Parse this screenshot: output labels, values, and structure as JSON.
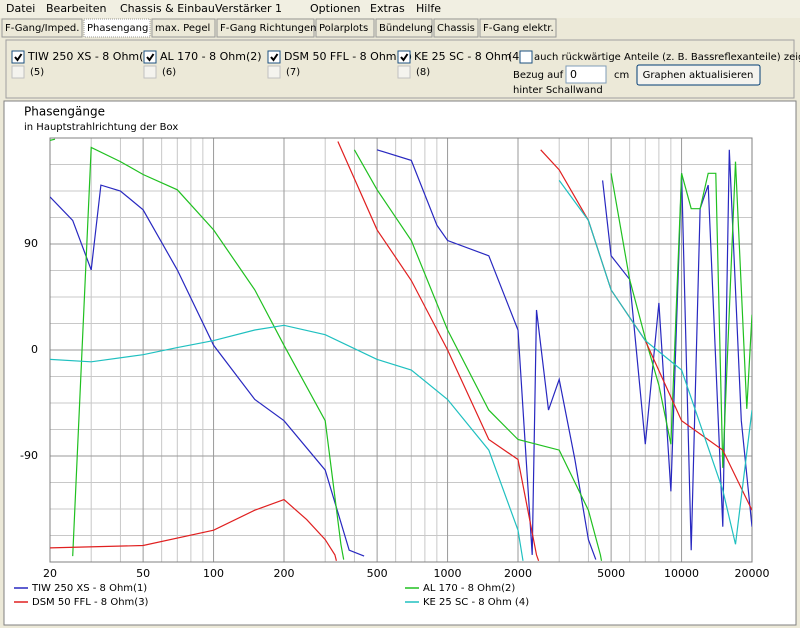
{
  "menu": [
    "Datei",
    "Bearbeiten",
    "Chassis & Einbau",
    "Verstärker 1",
    "Optionen",
    "Extras",
    "Hilfe"
  ],
  "tabs": [
    "F-Gang/Imped.",
    "Phasengang",
    "max. Pegel",
    "F-Gang Richtungen",
    "Polarplots",
    "Bündelung",
    "Chassis",
    "F-Gang elektr."
  ],
  "active_tab": 1,
  "panel": {
    "drivers": [
      {
        "label": "TIW 250 XS - 8 Ohm(1)",
        "checked": true
      },
      {
        "label": "AL 170 - 8 Ohm(2)",
        "checked": true
      },
      {
        "label": "DSM 50 FFL - 8 Ohm(3)",
        "checked": true
      },
      {
        "label": "KE 25 SC - 8 Ohm",
        "checked": true
      }
    ],
    "slot4": "(4",
    "slots": [
      "(5)",
      "(6)",
      "(7)",
      "(8)"
    ],
    "rear_option": "auch rückwärtige Anteile (z. B. Bassreflexanteile) zeigen",
    "reference_label": "Bezug auf",
    "reference_value": "0",
    "reference_unit": "cm",
    "reference_note": "hinter Schallwand",
    "button": "Graphen aktualisieren"
  },
  "chart_data": {
    "type": "line",
    "title": "Phasengänge",
    "subtitle": "in Hauptstrahlrichtung der Box",
    "xscale": "log",
    "xlim": [
      20,
      20000
    ],
    "xticks": [
      20,
      50,
      100,
      200,
      500,
      1000,
      2000,
      5000,
      10000,
      20000
    ],
    "xminor": [
      30,
      40,
      60,
      70,
      80,
      90,
      300,
      400,
      600,
      700,
      800,
      900,
      3000,
      4000,
      6000,
      7000,
      8000,
      9000
    ],
    "ylim": [
      -180,
      180
    ],
    "yticks": [
      -90,
      0,
      90
    ],
    "yminor": [
      -157.5,
      -135,
      -112.5,
      -67.5,
      -45,
      -22.5,
      22.5,
      45,
      67.5,
      112.5,
      135,
      157.5
    ],
    "grid": true,
    "series": [
      {
        "name": "TIW 250 XS - 8 Ohm(1)",
        "color": "#2828c0",
        "x": [
          20,
          25,
          30,
          33,
          40,
          50,
          70,
          100,
          150,
          200,
          300,
          380,
          440,
          440,
          500,
          700,
          900,
          1000,
          1500,
          2000,
          2300,
          2400,
          2700,
          3000,
          3500,
          4000,
          4300,
          4300,
          4600,
          5000,
          6000,
          7000,
          8000,
          9000,
          10000,
          11000,
          12000,
          13000,
          15000,
          16000,
          18000,
          20000
        ],
        "values": [
          130,
          110,
          68,
          140,
          135,
          119,
          68,
          4,
          -42,
          -60,
          -102,
          -170,
          -175,
          null,
          170,
          161,
          106,
          93,
          80,
          17,
          -174,
          34,
          -51,
          -25,
          -93,
          -161,
          -178,
          null,
          144,
          80,
          60,
          -80,
          40,
          -120,
          150,
          -170,
          120,
          140,
          -150,
          170,
          -60,
          -150
        ]
      },
      {
        "name": "AL 170 - 8 Ohm(2)",
        "color": "#20c020",
        "x": [
          20,
          21,
          21,
          25,
          30,
          40,
          50,
          70,
          100,
          150,
          200,
          300,
          350,
          360,
          360,
          400,
          500,
          700,
          1000,
          1500,
          2000,
          3000,
          4000,
          4500,
          4550,
          4550,
          5000,
          6000,
          7000,
          8000,
          9000,
          10000,
          11000,
          12000,
          13000,
          14000,
          15000,
          17000,
          19000,
          20000
        ],
        "values": [
          178,
          179,
          null,
          -175,
          172,
          160,
          149,
          136,
          102,
          51,
          4,
          -60,
          -165,
          -178,
          null,
          170,
          136,
          93,
          17,
          -51,
          -76,
          -85,
          -136,
          -174,
          -179,
          null,
          150,
          60,
          10,
          -30,
          -80,
          150,
          120,
          120,
          150,
          150,
          -100,
          160,
          -50,
          30
        ]
      },
      {
        "name": "DSM 50 FFL - 8 Ohm(3)",
        "color": "#e02020",
        "x": [
          20,
          50,
          100,
          150,
          200,
          250,
          300,
          330,
          335,
          335,
          340,
          500,
          700,
          1000,
          1500,
          2000,
          2400,
          2450,
          2450,
          2500,
          3000,
          4000,
          5000,
          7000,
          10000,
          15000,
          20000
        ],
        "values": [
          -168,
          -166,
          -153,
          -136,
          -127,
          -144,
          -161,
          -174,
          -179,
          null,
          177,
          102,
          59,
          0,
          -76,
          -93,
          -174,
          -179,
          null,
          170,
          153,
          110,
          51,
          8,
          -60,
          -85,
          -136
        ]
      },
      {
        "name": "KE 25 SC - 8 Ohm   (4)",
        "color": "#20c0c0",
        "x": [
          20,
          30,
          50,
          70,
          100,
          150,
          200,
          300,
          500,
          700,
          1000,
          1500,
          2000,
          2100,
          2100,
          3000,
          4000,
          5000,
          7000,
          10000,
          15000,
          17000,
          20000
        ],
        "values": [
          -8,
          -10,
          -4,
          2,
          8,
          17,
          21,
          13,
          -8,
          -17,
          -42,
          -85,
          -153,
          -179,
          null,
          144,
          110,
          51,
          8,
          -17,
          -119,
          -165,
          -51
        ]
      }
    ]
  }
}
